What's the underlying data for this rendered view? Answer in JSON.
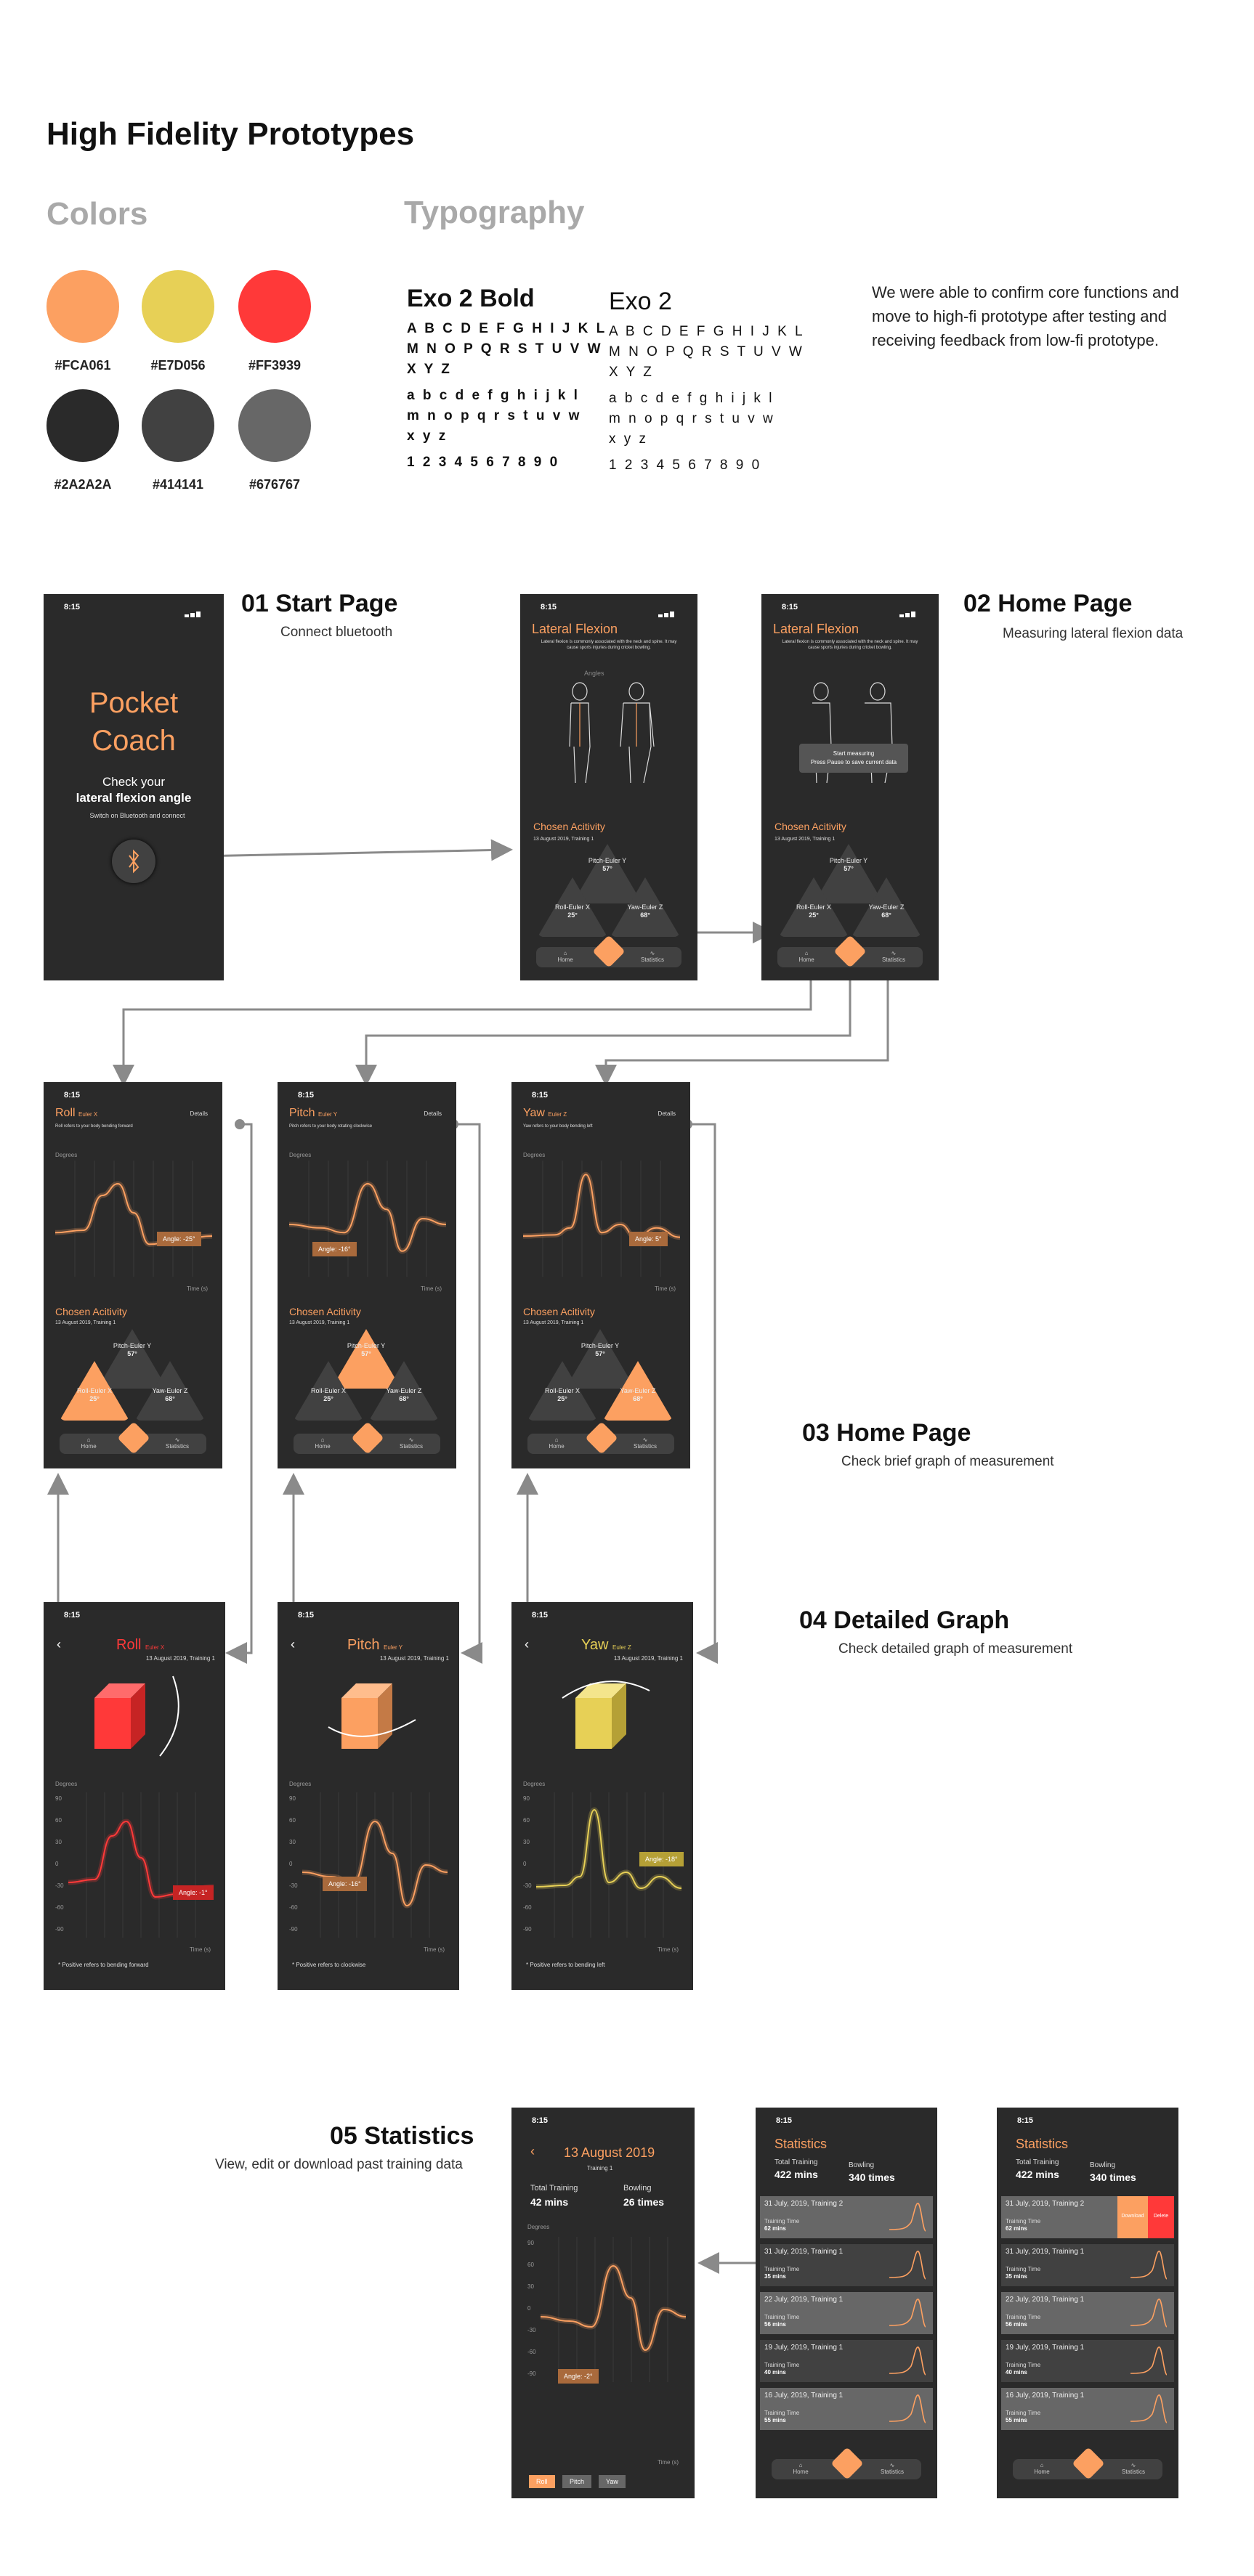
{
  "header": {
    "title": "High Fidelity Prototypes",
    "colors_heading": "Colors",
    "typography_heading": "Typography",
    "intro": "We were able to confirm core functions and move to high-fi prototype after testing and receiving feedback from low-fi prototype."
  },
  "palette": [
    {
      "hex": "#FCA061",
      "label": "#FCA061"
    },
    {
      "hex": "#E7D056",
      "label": "#E7D056"
    },
    {
      "hex": "#FF3939",
      "label": "#FF3939"
    },
    {
      "hex": "#2A2A2A",
      "label": "#2A2A2A"
    },
    {
      "hex": "#414141",
      "label": "#414141"
    },
    {
      "hex": "#676767",
      "label": "#676767"
    }
  ],
  "typography": {
    "bold_name": "Exo 2  Bold",
    "regular_name": "Exo 2",
    "upper_1": "A B C D E F G H I J K L",
    "upper_2": "M N O P Q R S T U V W",
    "upper_3": "X Y Z",
    "lower_1": "a b c d e f g h i j k l",
    "lower_2": "m n o p q r s t u v w",
    "lower_3": "x y z",
    "digits": "1 2 3 4 5 6 7 8 9 0"
  },
  "sections": {
    "s01_title": "01 Start Page",
    "s01_sub": "Connect bluetooth",
    "s02_title": "02 Home Page",
    "s02_sub": "Measuring lateral flexion data",
    "s03_title": "03 Home Page",
    "s03_sub": "Check brief graph of measurement",
    "s04_title": "04 Detailed Graph",
    "s04_sub": "Check detailed graph of measurement",
    "s05_title": "05 Statistics",
    "s05_sub": "View, edit or download past training data"
  },
  "phone": {
    "time": "8:15",
    "start_title_1": "Pocket",
    "start_title_2": "Coach",
    "start_check": "Check your",
    "start_check_bold": "lateral flexion angle",
    "start_switch": "Switch on Bluetooth and connect",
    "lateral_title": "Lateral Flexion",
    "lateral_desc": "Lateral flexion is commonly associated with the neck and spine. It may cause sports injuries during cricket bowling.",
    "angles_label": "Angles",
    "start_measuring": "Start measuring",
    "press_pause": "Press Pause to save current data",
    "chosen_activity": "Chosen Acitivity",
    "activity_date": "13 August 2019, Training 1",
    "pitch_label": "Pitch-Euler Y",
    "pitch_val": "57°",
    "roll_label": "Roll-Euler X",
    "roll_val": "25°",
    "yaw_label": "Yaw-Euler Z",
    "yaw_val": "68°",
    "nav_home": "Home",
    "nav_stats": "Statistics",
    "details": "Details",
    "degrees": "Degrees",
    "time_s": "Time (s)",
    "roll_title": "Roll",
    "roll_sub": "Euler X",
    "roll_desc": "Roll refers to your body bending forward",
    "pitch_title": "Pitch",
    "pitch_sub": "Euler Y",
    "pitch_desc": "Pitch refers to your body rotating clockwise",
    "yaw_title": "Yaw",
    "yaw_sub": "Euler Z",
    "yaw_desc": "Yaw refers to your body bending left",
    "angle_roll_brief": "Angle: -25°",
    "angle_pitch_brief": "Angle: -16°",
    "angle_yaw_brief": "Angle: 5°",
    "angle_roll_detail": "Angle: -1°",
    "angle_pitch_detail": "Angle: -16°",
    "angle_yaw_detail": "Angle: -18°",
    "pos_roll": "Positive refers to bending forward",
    "pos_pitch": "Positive refers to clockwise",
    "pos_yaw": "Positive refers to bending left",
    "y_ticks": [
      "90",
      "60",
      "30",
      "0",
      "-30",
      "-60",
      "-90"
    ]
  },
  "stats": {
    "detail_date": "13 August 2019",
    "detail_training": "Training 1",
    "total_training_label": "Total Training",
    "total_training_42": "42 mins",
    "bowling_label": "Bowling",
    "bowling_26": "26 times",
    "angle_detail": "Angle: -2°",
    "tab_roll": "Roll",
    "tab_pitch": "Pitch",
    "tab_yaw": "Yaw",
    "title": "Statistics",
    "total_422": "422 mins",
    "bowling_340": "340 times",
    "training_time_label": "Training Time",
    "download": "Download",
    "delete": "Delete",
    "rows": [
      {
        "title": "31 July, 2019, Training 2",
        "time": "62 mins"
      },
      {
        "title": "31 July, 2019, Training 1",
        "time": "35 mins"
      },
      {
        "title": "22 July, 2019, Training 1",
        "time": "56 mins"
      },
      {
        "title": "19 July, 2019, Training 1",
        "time": "40 mins"
      },
      {
        "title": "16 July, 2019, Training 1",
        "time": "55 mins"
      }
    ]
  },
  "icons": [
    "bluetooth-icon",
    "home-icon",
    "play-icon",
    "statistics-icon",
    "back-chevron-icon",
    "cube-icon",
    "signal-icon"
  ]
}
